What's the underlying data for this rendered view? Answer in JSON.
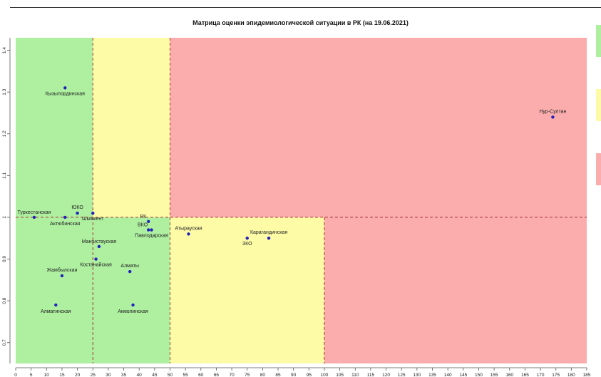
{
  "chart_data": {
    "type": "scatter",
    "title": "Матрица оценки эпидемиологической ситуации в РК (на 19.06.2021)",
    "xlabel": "",
    "ylabel": "",
    "xlim": [
      0,
      185
    ],
    "ylim": [
      0.65,
      1.43
    ],
    "x_ticks": [
      0,
      5,
      10,
      15,
      20,
      25,
      30,
      35,
      40,
      45,
      50,
      55,
      60,
      65,
      70,
      75,
      80,
      85,
      90,
      95,
      100,
      105,
      110,
      115,
      120,
      125,
      130,
      135,
      140,
      145,
      150,
      155,
      160,
      165,
      170,
      175,
      180,
      185
    ],
    "y_ticks": [
      0.7,
      0.8,
      0.9,
      1.0,
      1.1,
      1.2,
      1.3,
      1.4
    ],
    "y_tick_labels": [
      "0.7",
      "0.8",
      "0.9",
      "1",
      "1.1",
      "1.2",
      "1.3",
      "1.4"
    ],
    "x_tick_labels": [
      "0",
      "5",
      "10",
      "15",
      "20",
      "25",
      "30",
      "35",
      "40",
      "45",
      "50",
      "55",
      "60",
      "65",
      "70",
      "75",
      "80",
      "85",
      "90",
      "95",
      "100",
      "105",
      "110",
      "115",
      "120",
      "125",
      "130",
      "135",
      "140",
      "145",
      "150",
      "155",
      "160",
      "165",
      "170",
      "175",
      "180",
      "185"
    ],
    "thresholds": {
      "x": [
        25,
        50,
        100
      ],
      "y": 1.0
    },
    "zones": [
      {
        "zone": "green",
        "x": [
          0,
          25
        ],
        "y": [
          0.65,
          1.43
        ],
        "color": "#aef0a0"
      },
      {
        "zone": "green",
        "x": [
          25,
          50
        ],
        "y": [
          0.65,
          1.0
        ],
        "color": "#aef0a0"
      },
      {
        "zone": "yellow",
        "x": [
          25,
          50
        ],
        "y": [
          1.0,
          1.43
        ],
        "color": "#fdfba6"
      },
      {
        "zone": "yellow",
        "x": [
          50,
          100
        ],
        "y": [
          0.65,
          1.0
        ],
        "color": "#fdfba6"
      },
      {
        "zone": "red",
        "x": [
          50,
          185
        ],
        "y": [
          1.0,
          1.43
        ],
        "color": "#fbadad"
      },
      {
        "zone": "red",
        "x": [
          100,
          185
        ],
        "y": [
          0.65,
          1.0
        ],
        "color": "#fbadad"
      }
    ],
    "points": [
      {
        "name": "Кызылординская",
        "x": 16,
        "y": 1.31,
        "color": "#2222bb",
        "label_color": "#222222",
        "anchor": "middle",
        "dx": 0,
        "dy": 10
      },
      {
        "name": "Нур-Султан",
        "x": 174,
        "y": 1.24,
        "color": "#2222bb",
        "label_color": "#222222",
        "anchor": "middle",
        "dx": 0,
        "dy": -6
      },
      {
        "name": "Туркестанская",
        "x": 6,
        "y": 1.0,
        "color": "#2222bb",
        "label_color": "#222222",
        "anchor": "middle",
        "dx": 0,
        "dy": -5
      },
      {
        "name": "ЮКО",
        "x": 20,
        "y": 1.01,
        "color": "#2222bb",
        "label_color": "#222222",
        "anchor": "middle",
        "dx": 0,
        "dy": -6
      },
      {
        "name": "Шымкент",
        "x": 25,
        "y": 1.01,
        "color": "#2222bb",
        "label_color": "#222222",
        "anchor": "middle",
        "dx": 0,
        "dy": 10
      },
      {
        "name": "Актюбинская",
        "x": 16,
        "y": 1.0,
        "color": "#2222bb",
        "label_color": "#222222",
        "anchor": "middle",
        "dx": 0,
        "dy": 11
      },
      {
        "name": "РК",
        "x": 43,
        "y": 0.99,
        "color": "#2222bb",
        "label_color": "#cc5500",
        "anchor": "end",
        "dx": -3,
        "dy": -5
      },
      {
        "name": "ВКО",
        "x": 43,
        "y": 0.97,
        "color": "#2222bb",
        "label_color": "#222222",
        "anchor": "end",
        "dx": -1,
        "dy": -5
      },
      {
        "name": "Павлодарская",
        "x": 44,
        "y": 0.97,
        "color": "#2222bb",
        "label_color": "#222222",
        "anchor": "middle",
        "dx": 0,
        "dy": 10
      },
      {
        "name": "Мангистауская",
        "x": 27,
        "y": 0.93,
        "color": "#2222bb",
        "label_color": "#222222",
        "anchor": "middle",
        "dx": 0,
        "dy": -5
      },
      {
        "name": "Костанайская",
        "x": 26,
        "y": 0.9,
        "color": "#2222bb",
        "label_color": "#222222",
        "anchor": "middle",
        "dx": 0,
        "dy": 10
      },
      {
        "name": "Алматы",
        "x": 37,
        "y": 0.87,
        "color": "#2222bb",
        "label_color": "#222222",
        "anchor": "middle",
        "dx": 0,
        "dy": -6
      },
      {
        "name": "Жамбылская",
        "x": 15,
        "y": 0.86,
        "color": "#2222bb",
        "label_color": "#222222",
        "anchor": "middle",
        "dx": 0,
        "dy": -6
      },
      {
        "name": "Алматинская",
        "x": 13,
        "y": 0.79,
        "color": "#2222bb",
        "label_color": "#222222",
        "anchor": "middle",
        "dx": 0,
        "dy": 11
      },
      {
        "name": "Акмолинская",
        "x": 38,
        "y": 0.79,
        "color": "#2222bb",
        "label_color": "#222222",
        "anchor": "middle",
        "dx": 0,
        "dy": 11
      },
      {
        "name": "Атырауская",
        "x": 56,
        "y": 0.96,
        "color": "#2222bb",
        "label_color": "#222222",
        "anchor": "middle",
        "dx": 0,
        "dy": -6
      },
      {
        "name": "Карагандинская",
        "x": 82,
        "y": 0.95,
        "color": "#2222bb",
        "label_color": "#222222",
        "anchor": "middle",
        "dx": 0,
        "dy": -6
      },
      {
        "name": "ЗКО",
        "x": 75,
        "y": 0.95,
        "color": "#2222bb",
        "label_color": "#222222",
        "anchor": "middle",
        "dx": 0,
        "dy": 10
      }
    ]
  },
  "legend_colors": [
    "#aef0a0",
    "#fdfba6",
    "#fbadad"
  ]
}
